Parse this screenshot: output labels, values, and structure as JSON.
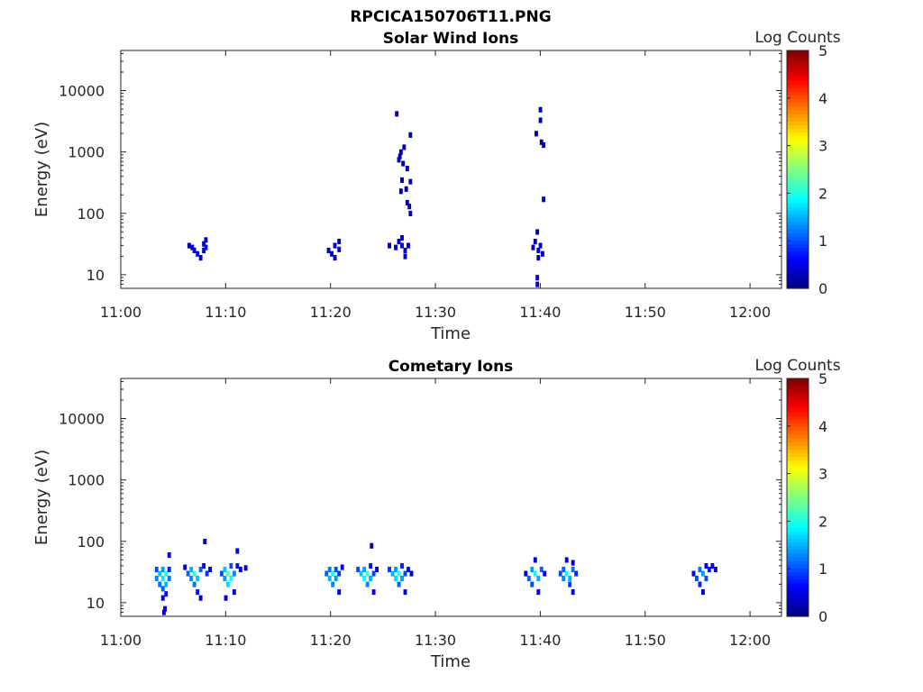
{
  "figure_title": "RPCICA150706T11.PNG",
  "chart_data": [
    {
      "type": "heatmap",
      "title": "Solar Wind Ions",
      "xlabel": "Time",
      "ylabel": "Energy (eV)",
      "x_ticks": [
        "11:00",
        "11:10",
        "11:20",
        "11:30",
        "11:40",
        "11:50",
        "12:00"
      ],
      "x_range_minutes": [
        0,
        63
      ],
      "y_scale": "log",
      "y_ticks": [
        10,
        100,
        1000,
        10000
      ],
      "y_tick_labels": [
        "10",
        "100",
        "1000",
        "10000"
      ],
      "ylim": [
        6,
        45000
      ],
      "colorbar": {
        "label": "Log Counts",
        "range": [
          0,
          5
        ],
        "ticks": [
          "0",
          "1",
          "2",
          "3",
          "4",
          "5"
        ],
        "colormap": "jet"
      },
      "cells": [
        [
          6.5,
          30,
          0.3
        ],
        [
          6.8,
          28,
          0.3
        ],
        [
          7.0,
          25,
          0.4
        ],
        [
          7.3,
          22,
          0.5
        ],
        [
          7.6,
          19,
          0.3
        ],
        [
          7.9,
          25,
          0.5
        ],
        [
          7.9,
          32,
          0.4
        ],
        [
          8.1,
          37,
          0.3
        ],
        [
          8.1,
          28,
          0.6
        ],
        [
          19.8,
          25,
          0.3
        ],
        [
          20.1,
          22,
          0.5
        ],
        [
          20.4,
          19,
          0.3
        ],
        [
          20.4,
          30,
          0.4
        ],
        [
          20.8,
          35,
          0.3
        ],
        [
          20.8,
          26,
          0.4
        ],
        [
          25.6,
          30,
          0.3
        ],
        [
          26.2,
          28,
          0.4
        ],
        [
          26.5,
          35,
          0.3
        ],
        [
          26.8,
          30,
          0.6
        ],
        [
          26.8,
          40,
          0.3
        ],
        [
          27.1,
          25,
          0.5
        ],
        [
          27.1,
          20,
          0.3
        ],
        [
          27.4,
          30,
          0.4
        ],
        [
          26.3,
          4200,
          0.2
        ],
        [
          26.6,
          850,
          0.2
        ],
        [
          26.5,
          750,
          0.2
        ],
        [
          26.7,
          1000,
          0.2
        ],
        [
          27.0,
          1200,
          0.2
        ],
        [
          26.9,
          650,
          0.2
        ],
        [
          27.3,
          540,
          0.2
        ],
        [
          27.6,
          1900,
          0.2
        ],
        [
          26.8,
          350,
          0.2
        ],
        [
          27.6,
          330,
          0.2
        ],
        [
          26.7,
          230,
          0.2
        ],
        [
          27.2,
          250,
          0.2
        ],
        [
          27.3,
          150,
          0.2
        ],
        [
          27.5,
          130,
          0.2
        ],
        [
          27.6,
          100,
          0.3
        ],
        [
          39.3,
          28,
          0.3
        ],
        [
          39.5,
          35,
          0.3
        ],
        [
          39.7,
          50,
          0.2
        ],
        [
          39.8,
          25,
          0.5
        ],
        [
          40.0,
          30,
          0.4
        ],
        [
          40.2,
          22,
          0.3
        ],
        [
          39.8,
          19,
          0.3
        ],
        [
          39.7,
          9,
          0.6
        ],
        [
          39.7,
          7,
          0.5
        ],
        [
          39.6,
          2000,
          0.2
        ],
        [
          40.0,
          4900,
          0.2
        ],
        [
          40.0,
          3300,
          0.2
        ],
        [
          40.1,
          1450,
          0.2
        ],
        [
          40.3,
          1300,
          0.2
        ],
        [
          40.3,
          170,
          0.2
        ]
      ]
    },
    {
      "type": "heatmap",
      "title": "Cometary Ions",
      "xlabel": "Time",
      "ylabel": "Energy (eV)",
      "x_ticks": [
        "11:00",
        "11:10",
        "11:20",
        "11:30",
        "11:40",
        "11:50",
        "12:00"
      ],
      "x_range_minutes": [
        0,
        63
      ],
      "y_scale": "log",
      "y_ticks": [
        10,
        100,
        1000,
        10000
      ],
      "y_tick_labels": [
        "10",
        "100",
        "1000",
        "10000"
      ],
      "ylim": [
        6,
        45000
      ],
      "colorbar": {
        "label": "Log Counts",
        "range": [
          0,
          5
        ],
        "ticks": [
          "0",
          "1",
          "2",
          "3",
          "4",
          "5"
        ],
        "colormap": "jet"
      },
      "cells": [
        [
          3.4,
          35,
          1.0
        ],
        [
          3.4,
          25,
          1.3
        ],
        [
          3.7,
          30,
          1.6
        ],
        [
          3.7,
          20,
          1.2
        ],
        [
          4.0,
          35,
          1.4
        ],
        [
          4.0,
          25,
          1.8
        ],
        [
          4.0,
          17,
          1.1
        ],
        [
          4.3,
          30,
          2.0
        ],
        [
          4.3,
          20,
          1.5
        ],
        [
          4.3,
          14,
          0.7
        ],
        [
          4.6,
          25,
          1.2
        ],
        [
          4.6,
          35,
          0.8
        ],
        [
          4.6,
          60,
          0.4
        ],
        [
          4.0,
          12,
          0.5
        ],
        [
          4.2,
          8,
          0.4
        ],
        [
          4.1,
          7,
          0.4
        ],
        [
          6.1,
          38,
          0.5
        ],
        [
          6.4,
          30,
          1.1
        ],
        [
          6.7,
          35,
          1.5
        ],
        [
          6.7,
          25,
          1.3
        ],
        [
          7.0,
          30,
          2.1
        ],
        [
          7.0,
          20,
          1.2
        ],
        [
          7.3,
          25,
          1.6
        ],
        [
          7.3,
          15,
          0.7
        ],
        [
          7.6,
          35,
          1.1
        ],
        [
          7.6,
          12,
          0.4
        ],
        [
          7.9,
          40,
          0.6
        ],
        [
          8.2,
          30,
          0.9
        ],
        [
          8.5,
          35,
          0.4
        ],
        [
          8.0,
          100,
          0.3
        ],
        [
          9.6,
          30,
          1.0
        ],
        [
          9.9,
          35,
          1.6
        ],
        [
          9.9,
          25,
          1.4
        ],
        [
          10.2,
          30,
          2.3
        ],
        [
          10.2,
          20,
          1.7
        ],
        [
          10.5,
          25,
          1.9
        ],
        [
          10.5,
          40,
          1.0
        ],
        [
          10.8,
          30,
          1.3
        ],
        [
          10.8,
          15,
          0.6
        ],
        [
          11.1,
          40,
          0.7
        ],
        [
          11.1,
          70,
          0.4
        ],
        [
          11.4,
          35,
          0.5
        ],
        [
          10.0,
          12,
          0.4
        ],
        [
          11.9,
          37,
          0.4
        ],
        [
          19.6,
          30,
          1.1
        ],
        [
          19.9,
          25,
          1.5
        ],
        [
          19.9,
          35,
          1.2
        ],
        [
          20.2,
          30,
          1.9
        ],
        [
          20.2,
          20,
          1.3
        ],
        [
          20.5,
          25,
          1.4
        ],
        [
          20.5,
          35,
          1.0
        ],
        [
          20.8,
          30,
          0.9
        ],
        [
          20.8,
          15,
          0.5
        ],
        [
          21.1,
          38,
          0.6
        ],
        [
          22.6,
          35,
          1.0
        ],
        [
          22.9,
          30,
          1.6
        ],
        [
          23.2,
          25,
          1.9
        ],
        [
          23.2,
          35,
          1.4
        ],
        [
          23.5,
          30,
          2.1
        ],
        [
          23.5,
          20,
          1.3
        ],
        [
          23.8,
          25,
          1.5
        ],
        [
          23.8,
          40,
          0.7
        ],
        [
          24.1,
          30,
          1.0
        ],
        [
          24.1,
          15,
          0.6
        ],
        [
          24.4,
          35,
          0.6
        ],
        [
          23.9,
          85,
          0.3
        ],
        [
          25.6,
          35,
          0.9
        ],
        [
          25.9,
          30,
          1.5
        ],
        [
          26.2,
          25,
          1.7
        ],
        [
          26.2,
          35,
          1.4
        ],
        [
          26.5,
          30,
          2.0
        ],
        [
          26.5,
          20,
          1.1
        ],
        [
          26.8,
          25,
          1.4
        ],
        [
          26.8,
          40,
          0.8
        ],
        [
          27.1,
          30,
          1.0
        ],
        [
          27.1,
          15,
          0.5
        ],
        [
          27.4,
          35,
          0.7
        ],
        [
          27.7,
          30,
          0.4
        ],
        [
          38.6,
          30,
          0.5
        ],
        [
          38.9,
          25,
          1.1
        ],
        [
          39.2,
          35,
          1.4
        ],
        [
          39.2,
          20,
          1.0
        ],
        [
          39.5,
          30,
          1.9
        ],
        [
          39.5,
          50,
          0.5
        ],
        [
          39.8,
          25,
          1.5
        ],
        [
          39.8,
          15,
          0.6
        ],
        [
          40.1,
          35,
          1.1
        ],
        [
          40.4,
          30,
          0.6
        ],
        [
          41.9,
          30,
          1.0
        ],
        [
          42.2,
          25,
          1.3
        ],
        [
          42.2,
          35,
          1.1
        ],
        [
          42.5,
          30,
          1.9
        ],
        [
          42.5,
          50,
          0.4
        ],
        [
          42.8,
          25,
          1.5
        ],
        [
          42.8,
          20,
          0.9
        ],
        [
          43.1,
          35,
          1.2
        ],
        [
          43.1,
          15,
          0.5
        ],
        [
          43.4,
          30,
          0.8
        ],
        [
          43.1,
          45,
          0.4
        ],
        [
          54.6,
          30,
          0.6
        ],
        [
          54.9,
          25,
          1.0
        ],
        [
          55.2,
          35,
          1.2
        ],
        [
          55.2,
          20,
          0.8
        ],
        [
          55.5,
          30,
          1.4
        ],
        [
          55.5,
          15,
          0.5
        ],
        [
          55.8,
          25,
          1.0
        ],
        [
          55.8,
          40,
          0.6
        ],
        [
          56.1,
          35,
          0.7
        ],
        [
          56.4,
          40,
          0.5
        ],
        [
          56.7,
          35,
          0.4
        ]
      ]
    }
  ]
}
